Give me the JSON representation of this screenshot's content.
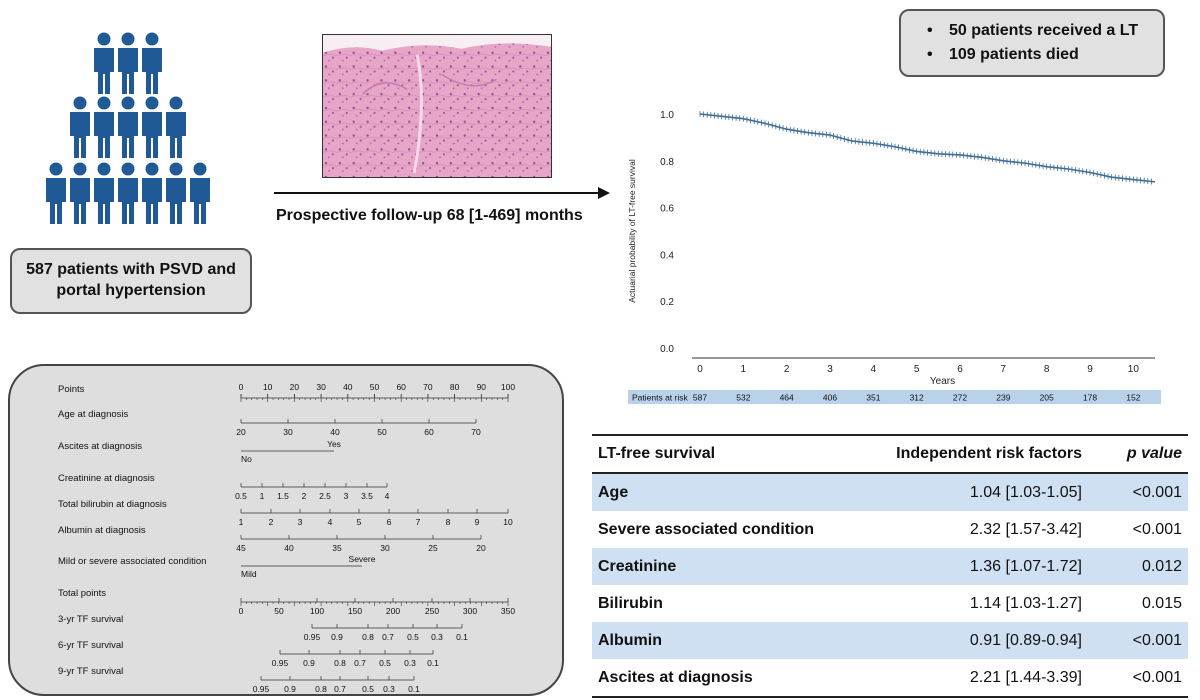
{
  "left": {
    "patients_label": "587 patients with PSVD and portal hypertension"
  },
  "followup": {
    "label": "Prospective follow-up 68 [1-469] months"
  },
  "outcomes": {
    "items": [
      "50 patients received a LT",
      "109  patients died"
    ]
  },
  "chart_data": {
    "type": "line",
    "title": "",
    "xlabel": "Years",
    "ylabel": "Actuarial probability of LT-free survival",
    "xlim": [
      0,
      10.5
    ],
    "ylim": [
      0,
      1.0
    ],
    "x_ticks": [
      "0",
      "1",
      "2",
      "3",
      "4",
      "5",
      "6",
      "7",
      "8",
      "9",
      "10"
    ],
    "y_ticks": [
      "0.0",
      "0.2",
      "0.4",
      "0.6",
      "0.8",
      "1.0"
    ],
    "series": [
      {
        "name": "",
        "color": "#3d6e99",
        "x": [
          0,
          0.5,
          1,
          1.5,
          2,
          2.5,
          3,
          3.5,
          4,
          4.5,
          5,
          5.5,
          6,
          6.5,
          7,
          7.5,
          8,
          8.5,
          9,
          9.5,
          10,
          10.5
        ],
        "y": [
          1.0,
          0.99,
          0.98,
          0.96,
          0.935,
          0.92,
          0.91,
          0.885,
          0.875,
          0.86,
          0.84,
          0.83,
          0.825,
          0.815,
          0.8,
          0.79,
          0.775,
          0.765,
          0.75,
          0.73,
          0.72,
          0.71
        ]
      }
    ],
    "risk_table": {
      "label": "Patients at risk",
      "values": [
        "587",
        "532",
        "464",
        "406",
        "351",
        "312",
        "272",
        "239",
        "205",
        "178",
        "152"
      ]
    }
  },
  "nomogram": {
    "rows": [
      {
        "label": "Points",
        "ticks": [
          "0",
          "10",
          "20",
          "30",
          "40",
          "50",
          "60",
          "70",
          "80",
          "90",
          "100"
        ]
      },
      {
        "label": "Age at diagnosis",
        "ticks": [
          "20",
          "30",
          "40",
          "50",
          "60",
          "70"
        ]
      },
      {
        "label": "Ascites at diagnosis",
        "ticks": [
          "No",
          "Yes"
        ]
      },
      {
        "label": "Creatinine at diagnosis",
        "ticks": [
          "0.5",
          "1",
          "1.5",
          "2",
          "2.5",
          "3",
          "3.5",
          "4"
        ]
      },
      {
        "label": "Total bilirubin at diagnosis",
        "ticks": [
          "1",
          "2",
          "3",
          "4",
          "5",
          "6",
          "7",
          "8",
          "9",
          "10"
        ]
      },
      {
        "label": "Albumin at diagnosis",
        "ticks": [
          "45",
          "40",
          "35",
          "30",
          "25",
          "20"
        ]
      },
      {
        "label": "Mild or severe associated condition",
        "ticks": [
          "Mild",
          "Severe"
        ]
      },
      {
        "label": "Total points",
        "ticks": [
          "0",
          "50",
          "100",
          "150",
          "200",
          "250",
          "300",
          "350"
        ]
      },
      {
        "label": "3-yr TF survival",
        "ticks": [
          "0.95",
          "0.9",
          "0.8",
          "0.7",
          "0.5",
          "0.3",
          "0.1"
        ]
      },
      {
        "label": "6-yr TF survival",
        "ticks": [
          "0.95",
          "0.9",
          "0.8",
          "0.7",
          "0.5",
          "0.3",
          "0.1"
        ]
      },
      {
        "label": "9-yr TF survival",
        "ticks": [
          "0.95",
          "0.9",
          "0.8",
          "0.7",
          "0.5",
          "0.3",
          "0.1"
        ]
      }
    ]
  },
  "risk_table": {
    "headers": [
      "LT-free survival",
      "Independent risk factors",
      "p value"
    ],
    "rows": [
      {
        "factor": "Age",
        "hr": "1.04 [1.03-1.05]",
        "p": "<0.001"
      },
      {
        "factor": "Severe associated condition",
        "hr": "2.32 [1.57-3.42]",
        "p": "<0.001"
      },
      {
        "factor": "Creatinine",
        "hr": "1.36 [1.07-1.72]",
        "p": "0.012"
      },
      {
        "factor": "Bilirubin",
        "hr": "1.14 [1.03-1.27]",
        "p": "0.015"
      },
      {
        "factor": "Albumin",
        "hr": "0.91 [0.89-0.94]",
        "p": "<0.001"
      },
      {
        "factor": "Ascites at diagnosis",
        "hr": "2.21 [1.44-3.39]",
        "p": "<0.001"
      }
    ]
  },
  "colors": {
    "people": "#1f5a96",
    "curve": "#3d6e99",
    "table_shade": "#cfe0f3",
    "risk_band": "#b9d2ea",
    "box_fill": "#e1e1e1"
  }
}
